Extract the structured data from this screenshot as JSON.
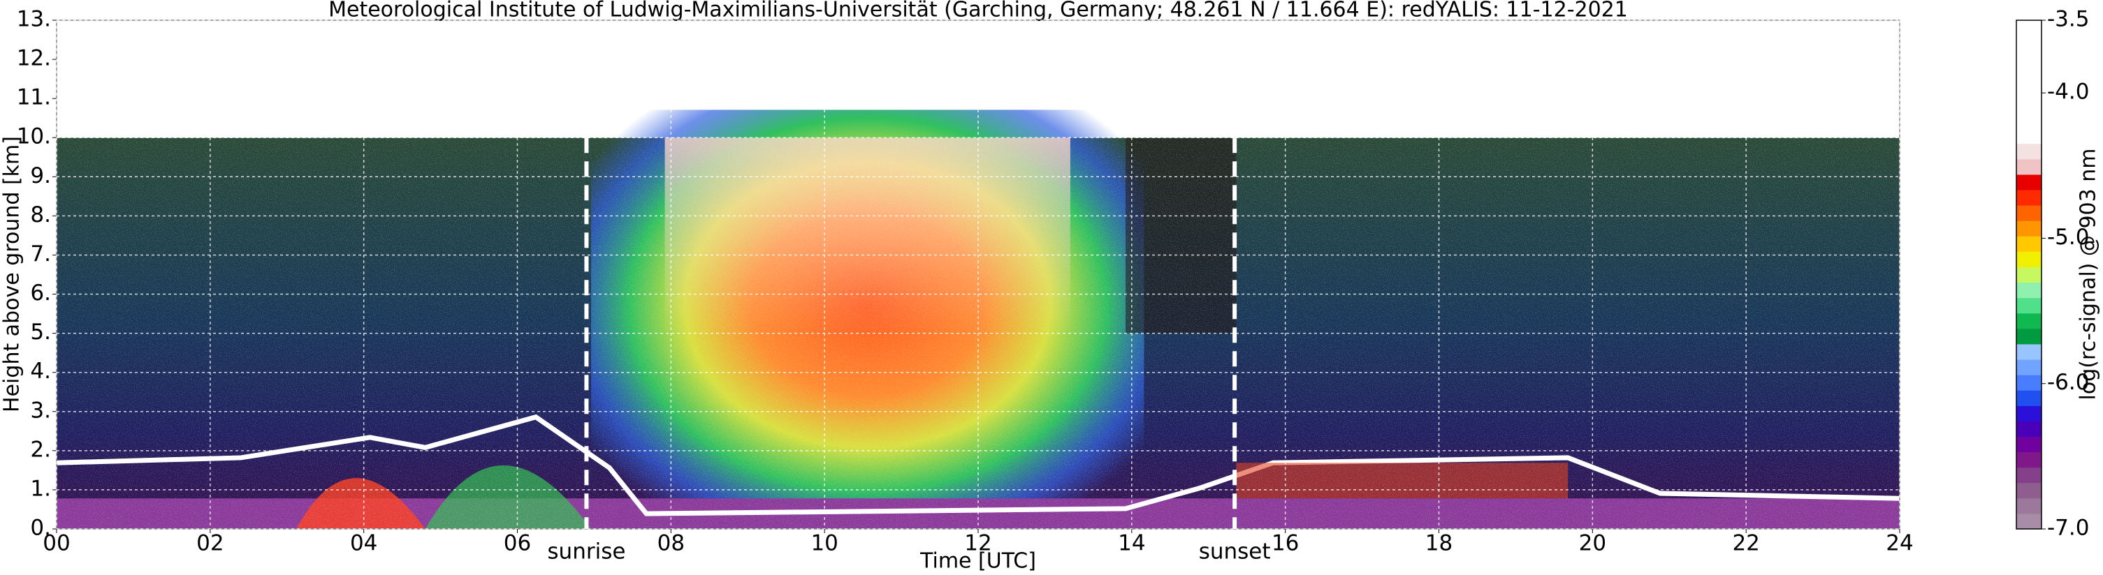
{
  "chart_data": {
    "type": "heatmap",
    "title": "Meteorological Institute of Ludwig-Maximilians-Universität (Garching, Germany; 48.261 N / 11.664 E):    redYALIS: 11-12-2021",
    "xlabel": "Time [UTC]",
    "ylabel": "Height above ground [km]",
    "xlim": [
      0,
      24
    ],
    "xticks": [
      {
        "value": 0,
        "label": "00"
      },
      {
        "value": 2,
        "label": "02"
      },
      {
        "value": 4,
        "label": "04"
      },
      {
        "value": 6,
        "label": "06"
      },
      {
        "value": 8,
        "label": "08"
      },
      10,
      12,
      14,
      16,
      18,
      20,
      22,
      24
    ],
    "ylim": [
      0,
      13
    ],
    "yticks": [
      {
        "value": 0,
        "label": "0."
      },
      {
        "value": 1,
        "label": "1."
      },
      {
        "value": 2,
        "label": "2."
      },
      {
        "value": 3,
        "label": "3."
      },
      {
        "value": 4,
        "label": "4."
      },
      {
        "value": 5,
        "label": "5."
      },
      {
        "value": 6,
        "label": "6."
      },
      {
        "value": 7,
        "label": "7."
      },
      {
        "value": 8,
        "label": "8."
      },
      {
        "value": 9,
        "label": "9."
      },
      {
        "value": 10,
        "label": "10."
      },
      {
        "value": 11,
        "label": "11."
      },
      {
        "value": 12,
        "label": "12."
      },
      {
        "value": 13,
        "label": "13."
      }
    ],
    "grid": true,
    "annotations": [
      {
        "text": "sunrise",
        "x": 6.9
      },
      {
        "text": "sunset",
        "x": 15.34
      }
    ],
    "colorbar": {
      "label": "log(rc-signal) @ 903 nm",
      "lim": [
        -7.0,
        -3.5
      ],
      "ticks": [
        {
          "value": -7.0,
          "label": "-7.0"
        },
        {
          "value": -6.0,
          "label": "-6.0"
        },
        {
          "value": -5.0,
          "label": "-5.0"
        },
        {
          "value": -4.0,
          "label": "-4.0"
        },
        -3.5
      ],
      "colors": [
        "#a88ca8",
        "#9c789c",
        "#8e5e8e",
        "#84408a",
        "#80188a",
        "#7000a0",
        "#4a00b8",
        "#2a10d8",
        "#2050f0",
        "#4a7cff",
        "#70a4ff",
        "#98c4ff",
        "#009a40",
        "#10b850",
        "#50e08a",
        "#90f0b0",
        "#c8f860",
        "#f0f000",
        "#ffc800",
        "#ff9600",
        "#ff6400",
        "#ff2a00",
        "#e80000",
        "#f0c4c4",
        "#f4e2e2",
        "#ffffff",
        "#ffffff",
        "#ffffff",
        "#ffffff",
        "#ffffff",
        "#ffffff",
        "#ffffff",
        "#ffffff"
      ]
    }
  }
}
